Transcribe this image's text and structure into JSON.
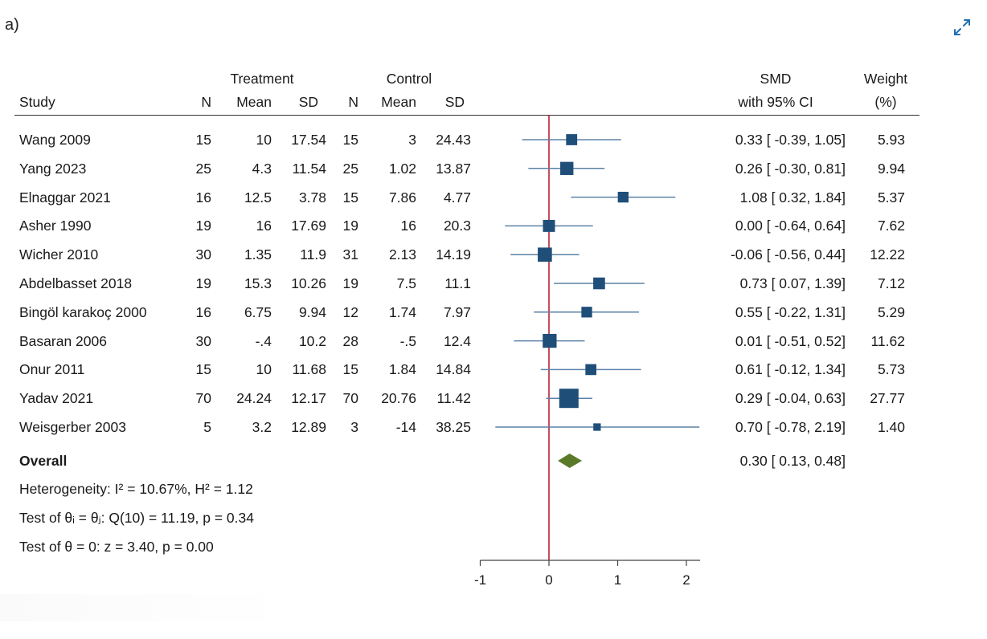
{
  "panel_label": "a)",
  "expand_icon": "expand-icon",
  "headers": {
    "treatment": "Treatment",
    "control": "Control",
    "study": "Study",
    "n": "N",
    "mean": "Mean",
    "sd": "SD",
    "smd_line1": "SMD",
    "smd_line2": "with 95% CI",
    "weight_line1": "Weight",
    "weight_line2": "(%)"
  },
  "colors": {
    "marker": "#1f4e79",
    "ci_line": "#5b82a6",
    "null_line": "#b0001e",
    "diamond": "#5a7a2a"
  },
  "overall": {
    "label": "Overall",
    "ci_text": "0.30 [  0.13,  0.48]",
    "smd": 0.3,
    "low": 0.13,
    "high": 0.48
  },
  "stats": {
    "heterogeneity": "Heterogeneity: I² = 10.67%, H² = 1.12",
    "test_theta_i": "Test of θᵢ = θⱼ: Q(10) = 11.19, p = 0.34",
    "test_theta0": "Test of θ = 0: z = 3.40, p = 0.00"
  },
  "chart_data": {
    "type": "forest",
    "title": "",
    "xlabel": "",
    "xlim": [
      -1,
      2.2
    ],
    "xticks": [
      "-1",
      "0",
      "1",
      "2"
    ],
    "null_value": 0,
    "studies": [
      {
        "study": "Wang 2009",
        "t_n": "15",
        "t_mean": "10",
        "t_sd": "17.54",
        "c_n": "15",
        "c_mean": "3",
        "c_sd": "24.43",
        "smd": 0.33,
        "low": -0.39,
        "high": 1.05,
        "ci_text": "0.33 [ -0.39,  1.05]",
        "weight": "5.93",
        "w": 5.93
      },
      {
        "study": "Yang 2023",
        "t_n": "25",
        "t_mean": "4.3",
        "t_sd": "11.54",
        "c_n": "25",
        "c_mean": "1.02",
        "c_sd": "13.87",
        "smd": 0.26,
        "low": -0.3,
        "high": 0.81,
        "ci_text": "0.26 [ -0.30,  0.81]",
        "weight": "9.94",
        "w": 9.94
      },
      {
        "study": "Elnaggar 2021",
        "t_n": "16",
        "t_mean": "12.5",
        "t_sd": "3.78",
        "c_n": "15",
        "c_mean": "7.86",
        "c_sd": "4.77",
        "smd": 1.08,
        "low": 0.32,
        "high": 1.84,
        "ci_text": "1.08 [  0.32,  1.84]",
        "weight": "5.37",
        "w": 5.37
      },
      {
        "study": "Asher 1990",
        "t_n": "19",
        "t_mean": "16",
        "t_sd": "17.69",
        "c_n": "19",
        "c_mean": "16",
        "c_sd": "20.3",
        "smd": 0.0,
        "low": -0.64,
        "high": 0.64,
        "ci_text": "0.00 [ -0.64,  0.64]",
        "weight": "7.62",
        "w": 7.62
      },
      {
        "study": "Wicher 2010",
        "t_n": "30",
        "t_mean": "1.35",
        "t_sd": "11.9",
        "c_n": "31",
        "c_mean": "2.13",
        "c_sd": "14.19",
        "smd": -0.06,
        "low": -0.56,
        "high": 0.44,
        "ci_text": "-0.06 [ -0.56,  0.44]",
        "weight": "12.22",
        "w": 12.22
      },
      {
        "study": "Abdelbasset 2018",
        "t_n": "19",
        "t_mean": "15.3",
        "t_sd": "10.26",
        "c_n": "19",
        "c_mean": "7.5",
        "c_sd": "11.1",
        "smd": 0.73,
        "low": 0.07,
        "high": 1.39,
        "ci_text": "0.73 [  0.07,  1.39]",
        "weight": "7.12",
        "w": 7.12
      },
      {
        "study": "Bingöl karakoç 2000",
        "t_n": "16",
        "t_mean": "6.75",
        "t_sd": "9.94",
        "c_n": "12",
        "c_mean": "1.74",
        "c_sd": "7.97",
        "smd": 0.55,
        "low": -0.22,
        "high": 1.31,
        "ci_text": "0.55 [ -0.22,  1.31]",
        "weight": "5.29",
        "w": 5.29
      },
      {
        "study": "Basaran 2006",
        "t_n": "30",
        "t_mean": "-.4",
        "t_sd": "10.2",
        "c_n": "28",
        "c_mean": "-.5",
        "c_sd": "12.4",
        "smd": 0.01,
        "low": -0.51,
        "high": 0.52,
        "ci_text": "0.01 [ -0.51,  0.52]",
        "weight": "11.62",
        "w": 11.62
      },
      {
        "study": "Onur 2011",
        "t_n": "15",
        "t_mean": "10",
        "t_sd": "11.68",
        "c_n": "15",
        "c_mean": "1.84",
        "c_sd": "14.84",
        "smd": 0.61,
        "low": -0.12,
        "high": 1.34,
        "ci_text": "0.61 [ -0.12,  1.34]",
        "weight": "5.73",
        "w": 5.73
      },
      {
        "study": "Yadav 2021",
        "t_n": "70",
        "t_mean": "24.24",
        "t_sd": "12.17",
        "c_n": "70",
        "c_mean": "20.76",
        "c_sd": "11.42",
        "smd": 0.29,
        "low": -0.04,
        "high": 0.63,
        "ci_text": "0.29 [ -0.04,  0.63]",
        "weight": "27.77",
        "w": 27.77
      },
      {
        "study": "Weisgerber 2003",
        "t_n": "5",
        "t_mean": "3.2",
        "t_sd": "12.89",
        "c_n": "3",
        "c_mean": "-14",
        "c_sd": "38.25",
        "smd": 0.7,
        "low": -0.78,
        "high": 2.19,
        "ci_text": "0.70 [ -0.78,  2.19]",
        "weight": "1.40",
        "w": 1.4
      }
    ]
  }
}
